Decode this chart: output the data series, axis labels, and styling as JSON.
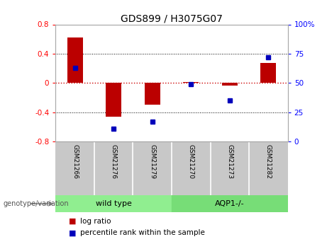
{
  "title": "GDS899 / H3075G07",
  "samples": [
    "GSM21266",
    "GSM21276",
    "GSM21279",
    "GSM21270",
    "GSM21273",
    "GSM21282"
  ],
  "log_ratio": [
    0.62,
    -0.46,
    -0.3,
    0.01,
    -0.04,
    0.27
  ],
  "percentile_rank": [
    63,
    11,
    17,
    49,
    35,
    72
  ],
  "ylim_left": [
    -0.8,
    0.8
  ],
  "ylim_right": [
    0,
    100
  ],
  "yticks_left": [
    -0.8,
    -0.4,
    0.0,
    0.4,
    0.8
  ],
  "yticks_right": [
    0,
    25,
    50,
    75,
    100
  ],
  "bar_color": "#bb0000",
  "dot_color": "#0000bb",
  "zero_line_color": "#cc0000",
  "bg_plot": "#ffffff",
  "bg_sample_row": "#c8c8c8",
  "bg_wild_type": "#90ee90",
  "bg_aqp1": "#77dd77",
  "wild_type_label": "wild type",
  "aqp1_label": "AQP1-/-",
  "genotype_label": "genotype/variation",
  "legend_log_ratio": "log ratio",
  "legend_percentile": "percentile rank within the sample",
  "bar_width": 0.4
}
